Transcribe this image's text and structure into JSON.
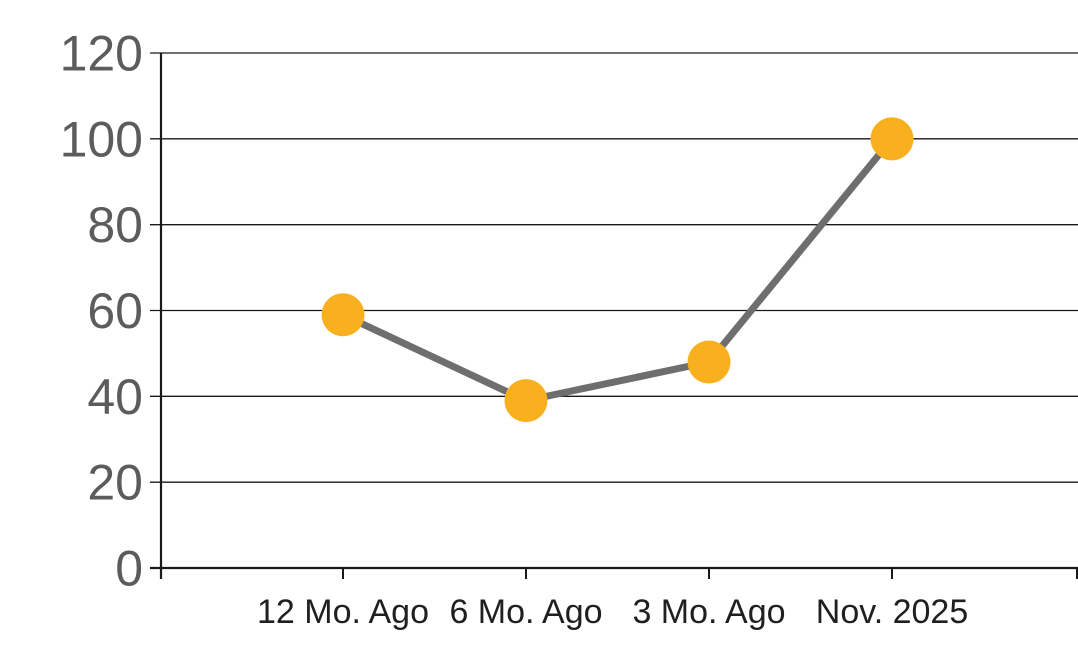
{
  "chart_data": {
    "type": "line",
    "title": "",
    "xlabel": "",
    "ylabel": "",
    "categories": [
      "12 Mo. Ago",
      "6 Mo. Ago",
      "3 Mo. Ago",
      "Nov. 2025"
    ],
    "series": [
      {
        "name": "series-1",
        "values": [
          59,
          39,
          48,
          100
        ]
      }
    ],
    "ylim": [
      0,
      120
    ],
    "yticks": [
      0,
      20,
      40,
      60,
      80,
      100,
      120
    ],
    "grid": true,
    "legend": false,
    "marker_shape": "circle",
    "colors": {
      "background": "#ffffff",
      "marker": "#F9B01E",
      "line": "#6E6E6E",
      "gridline": "#1A1A1A",
      "axis": "#1A1A1A",
      "y_label": "#5C5C5C",
      "x_label": "#1F1F1F"
    }
  }
}
